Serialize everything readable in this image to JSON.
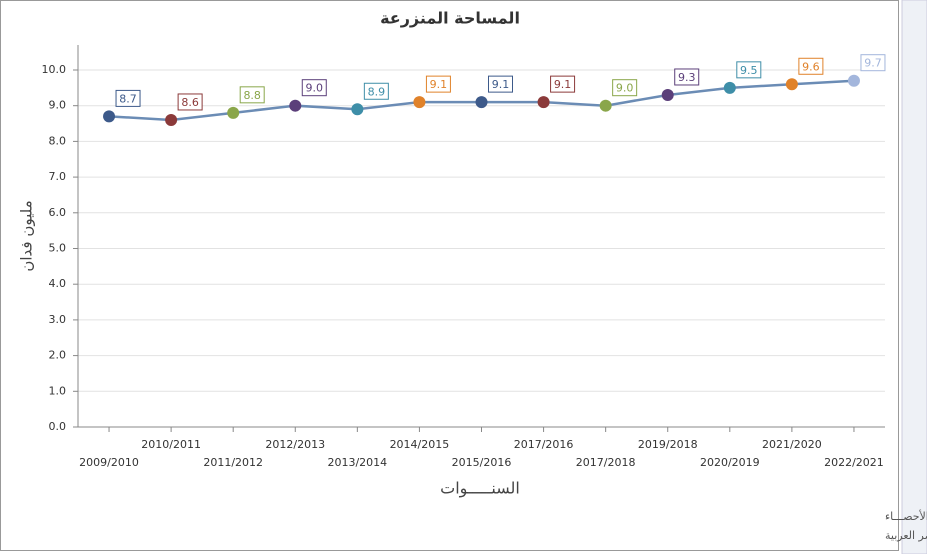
{
  "chart_data": {
    "type": "line",
    "title": "المساحة المنزرعة",
    "x_label": "السنـــــوات",
    "y_label": "مليون فدان",
    "categories": [
      "2009/2010",
      "2010/2011",
      "2011/2012",
      "2012/2013",
      "2013/2014",
      "2014/2015",
      "2015/2016",
      "2017/2016",
      "2017/2018",
      "2019/2018",
      "2020/2019",
      "2021/2020",
      "2022/2021"
    ],
    "series": [
      {
        "color": "#6b8cb5",
        "values": [
          8.7,
          8.6,
          8.8,
          9.0,
          8.9,
          9.1,
          9.1,
          9.1,
          9.0,
          9.3,
          9.5,
          9.6,
          9.7
        ],
        "value_labels": [
          "8.7",
          "8.6",
          "8.8",
          "9.0",
          "8.9",
          "9.1",
          "9.1",
          "9.1",
          "9.0",
          "9.3",
          "9.5",
          "9.6",
          "9.7"
        ],
        "point_colors": [
          "#3d5a8a",
          "#8b3a3a",
          "#8aa64a",
          "#5b3f7a",
          "#3e8ea8",
          "#e0822a",
          "#3d5a8a",
          "#8b3a3a",
          "#8aa64a",
          "#5b3f7a",
          "#3e8ea8",
          "#e0822a",
          "#a3b6dc"
        ]
      }
    ],
    "ylim": [
      0,
      10.7
    ],
    "yticks": [
      {
        "value": 0,
        "label": "0.0"
      },
      {
        "value": 1,
        "label": "1.0"
      },
      {
        "value": 2,
        "label": "2.0"
      },
      {
        "value": 3,
        "label": "3.0"
      },
      {
        "value": 4,
        "label": "4.0"
      },
      {
        "value": 5,
        "label": "5.0"
      },
      {
        "value": 6,
        "label": "6.0"
      },
      {
        "value": 7,
        "label": "7.0"
      },
      {
        "value": 8,
        "label": "8.0"
      },
      {
        "value": 9,
        "label": "9.0"
      },
      {
        "value": 10,
        "label": "10.0"
      }
    ],
    "grid": true,
    "notes": [
      "حقوق الملكية للجهـــاز المركزي للتعبئة العـامة والأحصـــاء",
      "المصدر الأسـاسـي للأحصاءات الرسـمية لجمهورية مصر العربية"
    ]
  }
}
